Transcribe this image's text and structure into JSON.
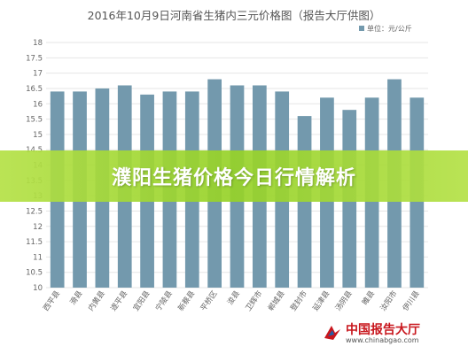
{
  "banner_text": "濮阳生猪价格今日行情解析",
  "watermark": {
    "title": "中国报告大厅",
    "url": "www.chinabgao.com"
  },
  "colors": {
    "bar": "#7399ad",
    "grid": "#e6e6e6",
    "axis_text": "#666666",
    "title_text": "#555555",
    "banner": "#9bd23a"
  },
  "chart_data": {
    "type": "bar",
    "title": "2016年10月9日河南省生猪内三元价格图（报告大厅供图）",
    "legend": {
      "label": "单位：元/公斤",
      "placement": "top-right"
    },
    "categories": [
      "西平县",
      "滑县",
      "内黄县",
      "遂平县",
      "宜阳县",
      "宁陵县",
      "新蔡县",
      "平桥区",
      "浚县",
      "卫辉市",
      "郸城县",
      "登封市",
      "延津县",
      "汤阴县",
      "睢县",
      "汝阳市",
      "伊川县"
    ],
    "values": [
      16.4,
      16.4,
      16.5,
      16.6,
      16.3,
      16.4,
      16.4,
      16.8,
      16.6,
      16.6,
      16.4,
      15.6,
      16.2,
      15.8,
      16.2,
      16.8,
      16.2
    ],
    "xlabel": "",
    "ylabel": "",
    "ylim": [
      10,
      18
    ],
    "yticks": [
      10,
      10.5,
      11,
      11.5,
      12,
      12.5,
      13,
      13.5,
      14,
      14.5,
      15,
      15.5,
      16,
      16.5,
      17,
      17.5,
      18
    ],
    "grid": true
  }
}
